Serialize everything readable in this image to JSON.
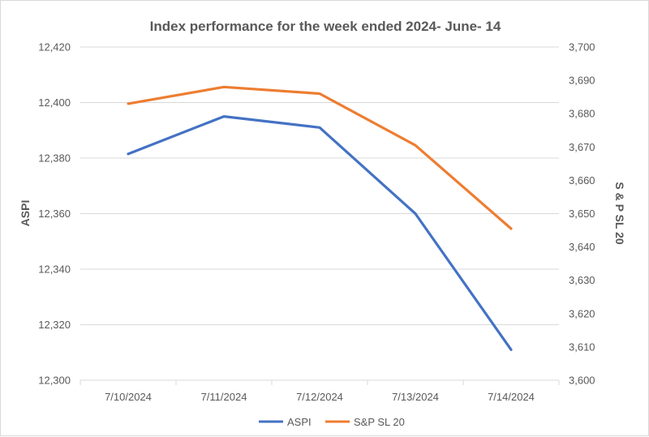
{
  "chart_data": {
    "type": "line",
    "title": "Index performance for the week ended 2024- June- 14",
    "categories": [
      "7/10/2024",
      "7/11/2024",
      "7/12/2024",
      "7/13/2024",
      "7/14/2024"
    ],
    "series": [
      {
        "name": "ASPI",
        "axis": "left",
        "color": "#4472C4",
        "values": [
          12381.5,
          12395.0,
          12391.0,
          12360.0,
          12311.0
        ]
      },
      {
        "name": "S&P SL 20",
        "axis": "right",
        "color": "#ED7D31",
        "values": [
          3683.0,
          3688.0,
          3686.0,
          3670.5,
          3645.5
        ]
      }
    ],
    "y_left": {
      "label": "ASPI",
      "ylim": [
        12300,
        12420
      ],
      "ticks": [
        12300,
        12320,
        12340,
        12360,
        12380,
        12400,
        12420
      ],
      "tick_labels": [
        "12,300",
        "12,320",
        "12,340",
        "12,360",
        "12,380",
        "12,400",
        "12,420"
      ]
    },
    "y_right": {
      "label": "S & P SL 20",
      "ylim": [
        3600,
        3700
      ],
      "ticks": [
        3600,
        3610,
        3620,
        3630,
        3640,
        3650,
        3660,
        3670,
        3680,
        3690,
        3700
      ],
      "tick_labels": [
        "3,600",
        "3,610",
        "3,620",
        "3,630",
        "3,640",
        "3,650",
        "3,660",
        "3,670",
        "3,680",
        "3,690",
        "3,700"
      ]
    },
    "grid": true,
    "legend": "bottom",
    "colors": {
      "grid": "#d9d9d9",
      "text": "#595959"
    }
  }
}
